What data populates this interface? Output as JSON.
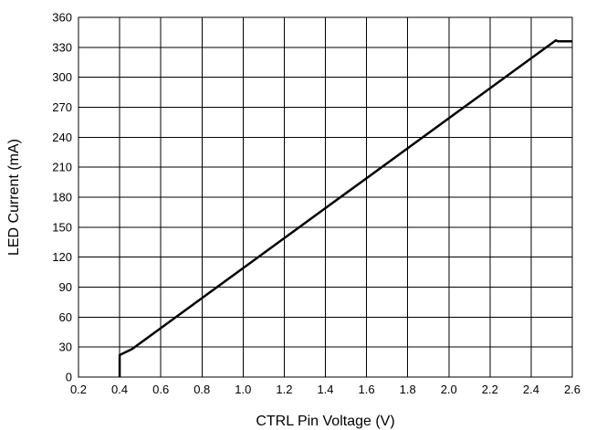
{
  "chart_data": {
    "type": "line",
    "title": "",
    "xlabel": "CTRL Pin Voltage (V)",
    "ylabel": "LED Current (mA)",
    "xlim": [
      0.2,
      2.6
    ],
    "ylim": [
      0,
      360
    ],
    "xticks": [
      "0.2",
      "0.4",
      "0.6",
      "0.8",
      "1.0",
      "1.2",
      "1.4",
      "1.6",
      "1.8",
      "2.0",
      "2.2",
      "2.4",
      "2.6"
    ],
    "yticks": [
      "0",
      "30",
      "60",
      "90",
      "120",
      "150",
      "180",
      "210",
      "240",
      "270",
      "300",
      "330",
      "360"
    ],
    "grid": true,
    "legend": "none",
    "line_color": "#000000",
    "series": [
      {
        "x": [
          0.4,
          0.4,
          0.46,
          0.6,
          0.8,
          1.0,
          1.2,
          1.4,
          1.6,
          1.8,
          2.0,
          2.2,
          2.4,
          2.5,
          2.52,
          2.53,
          2.6
        ],
        "y": [
          0,
          22,
          28,
          49,
          79,
          109,
          139,
          169,
          199,
          229,
          259,
          289,
          319,
          334,
          337,
          336,
          336
        ]
      }
    ]
  }
}
